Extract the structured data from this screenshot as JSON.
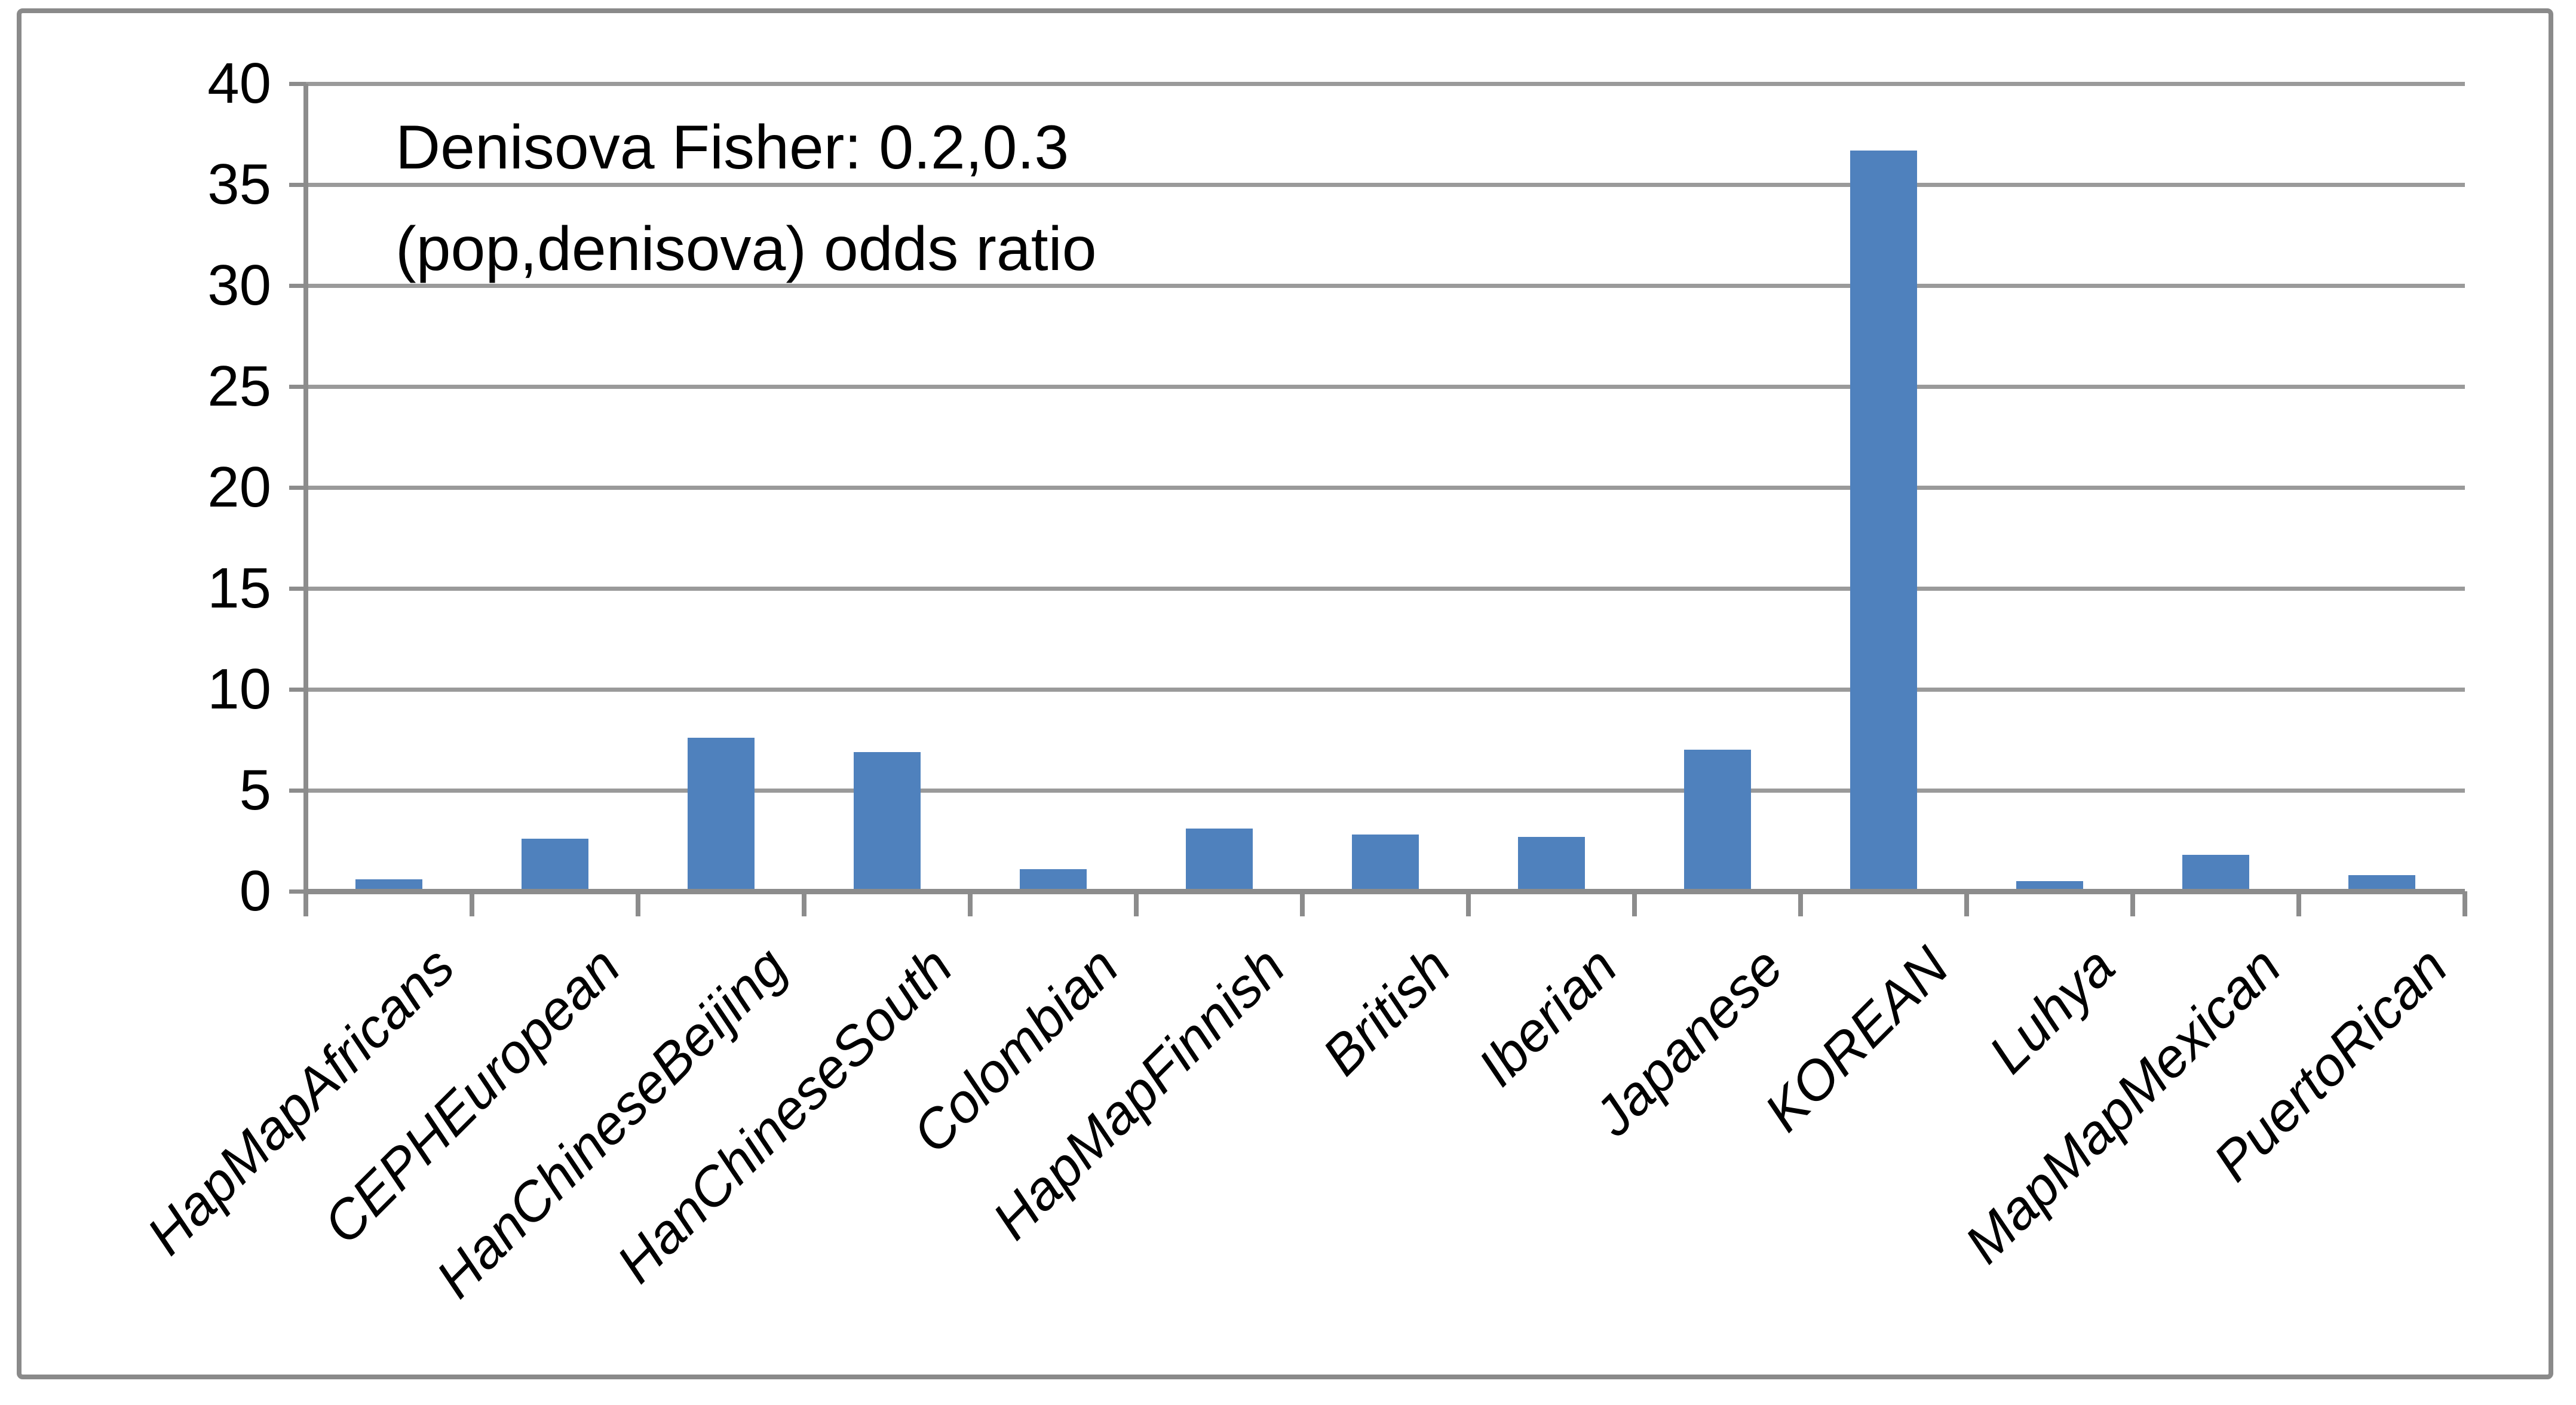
{
  "chart_data": {
    "type": "bar",
    "title": "Denisova Fisher: 0.2,0.3",
    "subtitle": "(pop,denisova) odds ratio",
    "title_position": "inside-plot-top-left",
    "categories": [
      "HapMapAfricans",
      "CEPHEuropean",
      "HanChineseBeijing",
      "HanChineseSouth",
      "Colombian",
      "HapMapFinnish",
      "British",
      "Iberian",
      "Japanese",
      "KOREAN",
      "Luhya",
      "MapMapMexican",
      "PuertoRican"
    ],
    "values": [
      0.6,
      2.6,
      7.6,
      6.9,
      1.1,
      3.1,
      2.8,
      2.7,
      7.0,
      36.7,
      0.5,
      1.8,
      0.8
    ],
    "xlabel": "",
    "ylabel": "",
    "ylim": [
      0,
      40
    ],
    "yticks": [
      0,
      5,
      10,
      15,
      20,
      25,
      30,
      35,
      40
    ],
    "grid": "horizontal",
    "legend": "none",
    "x_label_rotation_deg": 45,
    "colors": {
      "bar": "#4F81BD",
      "gridline": "#9A9A9A",
      "axis": "#8C8C8C",
      "border": "#8A8A8A",
      "text": "#000000"
    }
  }
}
